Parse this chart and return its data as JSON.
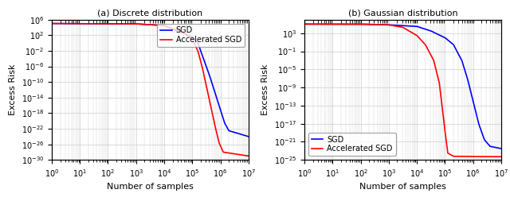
{
  "subplot_a": {
    "title": "(a) Discrete distribution",
    "sgd_color": "#0000FF",
    "accel_color": "#FF0000",
    "legend_loc": "upper right",
    "xlim_log": [
      0,
      7
    ],
    "ylim_log": [
      -30,
      6
    ],
    "sgd_label": "SGD",
    "accel_label": "Accelerated SGD"
  },
  "subplot_b": {
    "title": "(b) Gaussian distribution",
    "sgd_color": "#0000FF",
    "accel_color": "#FF0000",
    "legend_loc": "lower left",
    "xlim_log": [
      0,
      7
    ],
    "ylim_log": [
      -25,
      6
    ],
    "sgd_label": "SGD",
    "accel_label": "Accelerated SGD"
  },
  "xlabel": "Number of samples",
  "ylabel": "Excess Risk",
  "background_color": "#ffffff",
  "grid_color": "#cccccc",
  "linewidth": 1.2,
  "tick_fontsize": 7,
  "label_fontsize": 8,
  "legend_fontsize": 7
}
